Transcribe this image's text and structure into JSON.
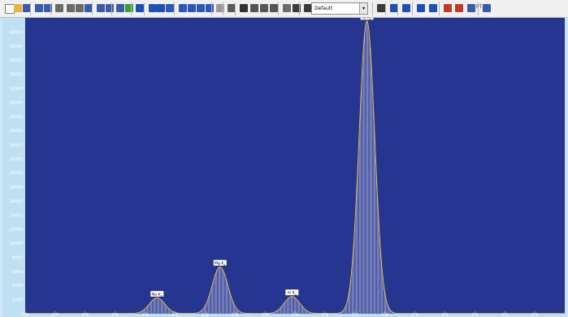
{
  "toolbar": {
    "profile_select": {
      "value": "Default"
    },
    "icons": [
      "new-file",
      "open-folder",
      "save",
      "help",
      "whats-this",
      "select",
      "pan",
      "zoom",
      "zoom-in",
      "zoom-out",
      "undo",
      "redo",
      "check",
      "view-1",
      "view-2",
      "view-3",
      "layout-1",
      "layout-2",
      "layout-3",
      "layout-4",
      "grid",
      "list",
      "document",
      "binoculars",
      "find",
      "find-next",
      "options",
      "calibrate",
      "measure",
      "tool-a",
      "tool-b",
      "analyze",
      "chart-1",
      "chart-2",
      "chart-3",
      "export",
      "palette",
      "periodic-table",
      "settings"
    ],
    "pt_label": "PT"
  },
  "chart_data": {
    "type": "area",
    "title": "",
    "xlabel": "",
    "ylabel": "",
    "xlim": [
      0.6,
      2.4
    ],
    "ylim": [
      0,
      42000
    ],
    "y_ticks": [
      2000,
      4000,
      6000,
      8000,
      10000,
      12000,
      14000,
      16000,
      18000,
      20000,
      22000,
      24000,
      26000,
      28000,
      30000,
      32000,
      34000,
      36000,
      38000,
      40000
    ],
    "x_ticks": [
      0.6,
      0.7,
      0.8,
      0.9,
      1.0,
      1.1,
      1.2,
      1.3,
      1.4,
      1.5,
      1.6,
      1.7,
      1.8,
      1.9,
      2.0,
      2.1,
      2.2,
      2.3
    ],
    "peaks": [
      {
        "label_main": "Na K",
        "label_sub": "α",
        "x": 1.04,
        "y": 2200
      },
      {
        "label_main": "Mg K",
        "label_sub": "α",
        "x": 1.25,
        "y": 6600
      },
      {
        "label_main": "Al K",
        "label_sub": "α",
        "x": 1.49,
        "y": 2400
      },
      {
        "label_main": "Si K",
        "label_sub": "α",
        "x": 1.74,
        "y": 41500
      }
    ],
    "colors": {
      "background": "#26358f",
      "bars": "#d9dcf2",
      "envelope": "#f2c640",
      "label_box": "#ffffff",
      "label_text": "#000000",
      "tick_text": "#ffffff"
    }
  }
}
